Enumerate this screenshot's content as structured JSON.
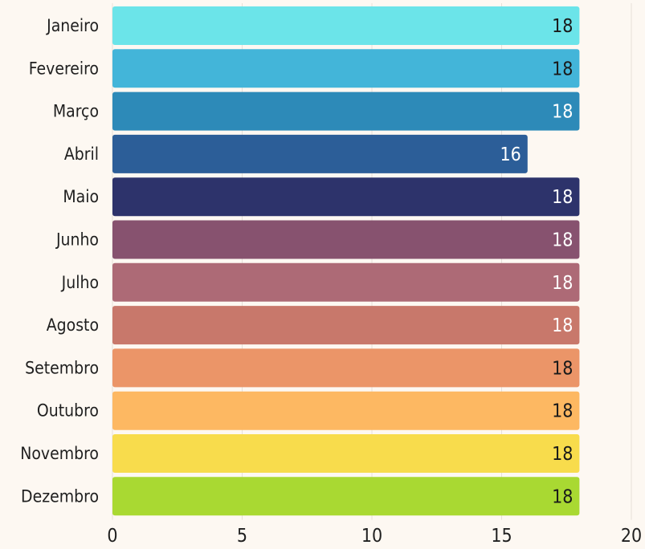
{
  "chart_data": {
    "type": "bar",
    "orientation": "horizontal",
    "title": "",
    "xlabel": "",
    "ylabel": "",
    "xlim": [
      0,
      20
    ],
    "x_ticks": [
      "0",
      "5",
      "10",
      "15",
      "20"
    ],
    "grid": "vertical",
    "categories": [
      "Janeiro",
      "Fevereiro",
      "Março",
      "Abril",
      "Maio",
      "Junho",
      "Julho",
      "Agosto",
      "Setembro",
      "Outubro",
      "Novembro",
      "Dezembro"
    ],
    "values": [
      18,
      18,
      18,
      16,
      18,
      18,
      18,
      18,
      18,
      18,
      18,
      18
    ],
    "value_labels": [
      "18",
      "18",
      "18",
      "16",
      "18",
      "18",
      "18",
      "18",
      "18",
      "18",
      "18",
      "18"
    ],
    "colors": [
      "#6be4e9",
      "#43b5d9",
      "#2d8ab8",
      "#2c5e98",
      "#2d336b",
      "#87526f",
      "#ad6a76",
      "#c8786b",
      "#eb9568",
      "#fdb862",
      "#f8dc4c",
      "#a9d932"
    ],
    "value_label_colors": [
      "#1a1a1a",
      "#1a1a1a",
      "#ffffff",
      "#ffffff",
      "#ffffff",
      "#ffffff",
      "#ffffff",
      "#ffffff",
      "#1a1a1a",
      "#1a1a1a",
      "#1a1a1a",
      "#1a1a1a"
    ]
  }
}
